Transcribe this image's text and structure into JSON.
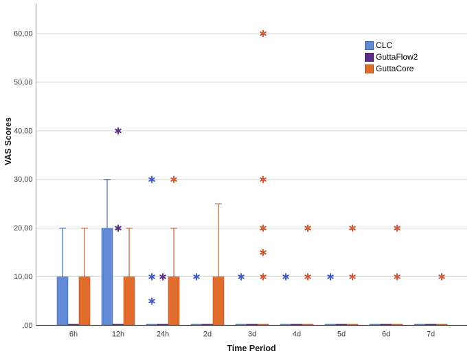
{
  "figure": {
    "background": "#ffffff",
    "grid_color": "#d6d6d6",
    "y_axis_line_color": "#ababab",
    "x_axis_line_color": "#4d4d4d",
    "tick_label_color": "#3f3f3f"
  },
  "chart_data": {
    "type": "bar",
    "title": "",
    "xlabel": "Time Period",
    "ylabel": "VAS Scores",
    "categories": [
      "6h",
      "12h",
      "24h",
      "2d",
      "3d",
      "4d",
      "5d",
      "6d",
      "7d"
    ],
    "ylim": [
      0,
      66
    ],
    "yticks": {
      "values": [
        0,
        10,
        20,
        30,
        40,
        50,
        60
      ],
      "labels": [
        ",00",
        "10,00",
        "20,00",
        "30,00",
        "40,00",
        "50,00",
        "60,00"
      ]
    },
    "grid": "horizontal",
    "legend_position": "upper-right-inside",
    "bar_style": "clustered, error bars upward only, asterisks mark extreme values",
    "series": [
      {
        "name": "CLC",
        "bar_color": "#6189d5",
        "bar_edge_color": "#4a6fb5",
        "error_color": "#5473be",
        "marker_color": "#3f5fc4",
        "values": [
          10,
          20,
          0,
          0,
          0,
          0,
          0,
          0,
          0
        ],
        "error_upper": [
          20,
          30,
          null,
          null,
          null,
          null,
          null,
          null,
          null
        ],
        "outliers": [
          [],
          [],
          [
            30,
            10,
            5
          ],
          [
            10
          ],
          [
            10
          ],
          [
            10
          ],
          [
            10
          ],
          [],
          []
        ]
      },
      {
        "name": "GuttaFlow2",
        "bar_color": "#5b2e87",
        "bar_edge_color": "#47226b",
        "error_color": "#5b2e87",
        "marker_color": "#5b2e87",
        "values": [
          0,
          0,
          0,
          0,
          0,
          0,
          0,
          0,
          0
        ],
        "error_upper": [
          null,
          null,
          null,
          null,
          null,
          null,
          null,
          null,
          null
        ],
        "outliers": [
          [],
          [
            40,
            20
          ],
          [
            10
          ],
          [],
          [],
          [],
          [],
          [],
          []
        ]
      },
      {
        "name": "GuttaCore",
        "bar_color": "#e06c2e",
        "bar_edge_color": "#bd5523",
        "error_color": "#c66a48",
        "marker_color": "#d05a38",
        "values": [
          10,
          10,
          10,
          10,
          0,
          0,
          0,
          0,
          0
        ],
        "error_upper": [
          20,
          20,
          20,
          25,
          null,
          null,
          null,
          null,
          null
        ],
        "outliers": [
          [],
          [],
          [
            30
          ],
          [],
          [
            60,
            30,
            20,
            15,
            10
          ],
          [
            20,
            10
          ],
          [
            20,
            10
          ],
          [
            20,
            10
          ],
          [
            10
          ]
        ]
      }
    ]
  }
}
